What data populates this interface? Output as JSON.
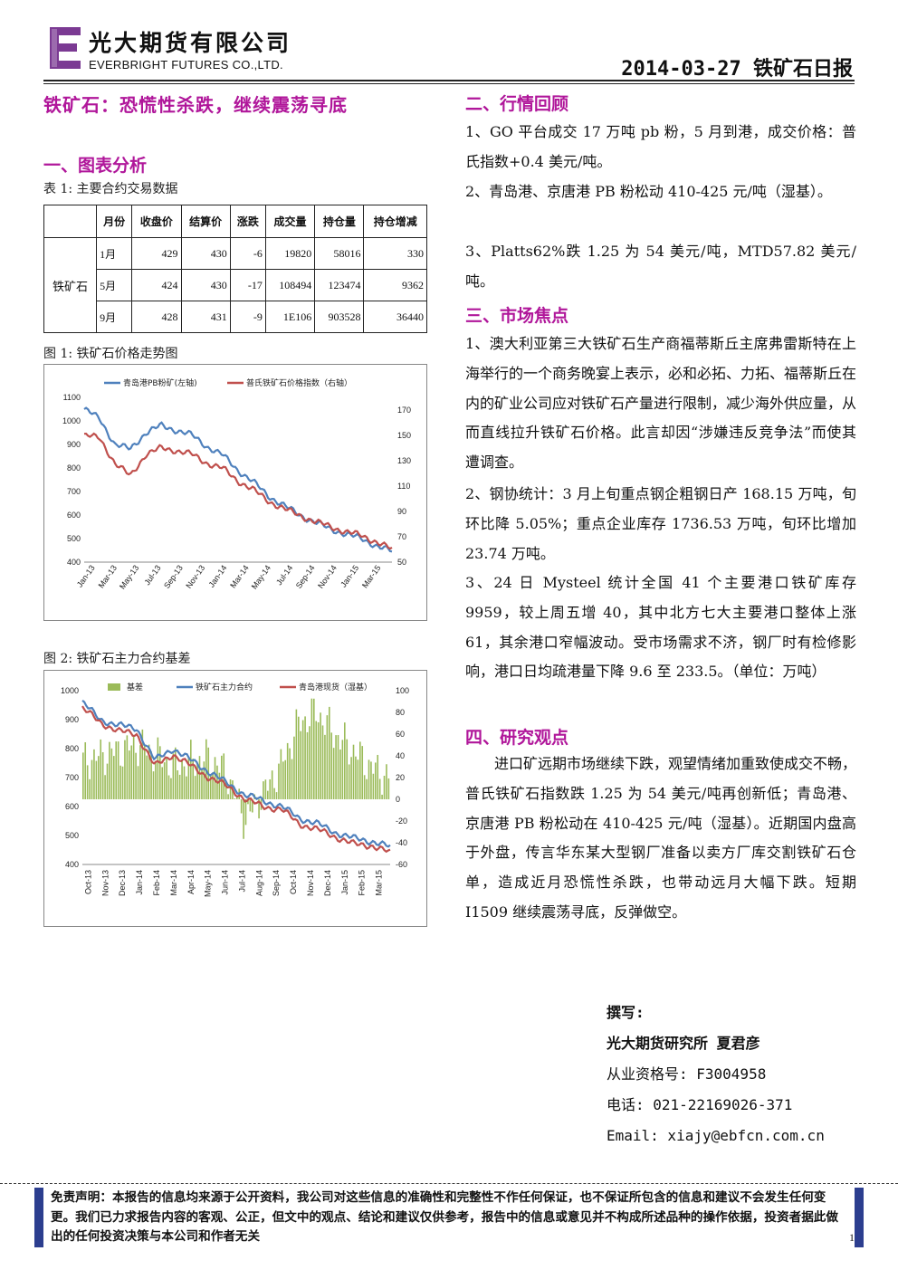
{
  "header": {
    "company_cn": "光大期货有限公司",
    "company_en": "EVERBRIGHT FUTURES CO.,LTD.",
    "report_title": "2014-03-27 铁矿石日报",
    "logo_color": "#7b3a93"
  },
  "headline": "铁矿石：恐慌性杀跌，继续震荡寻底",
  "section1": {
    "title": "一、图表分析",
    "table_caption": "表 1: 主要合约交易数据",
    "table": {
      "headers": [
        "",
        "月份",
        "收盘价",
        "结算价",
        "涨跌",
        "成交量",
        "持仓量",
        "持仓增减"
      ],
      "row_label": "铁矿石",
      "rows": [
        [
          "1月",
          "429",
          "430",
          "-6",
          "19820",
          "58016",
          "330"
        ],
        [
          "5月",
          "424",
          "430",
          "-17",
          "108494",
          "123474",
          "9362"
        ],
        [
          "9月",
          "428",
          "431",
          "-9",
          "1E106",
          "903528",
          "36440"
        ]
      ]
    },
    "fig1_caption": "图 1: 铁矿石价格走势图",
    "fig2_caption": "图 2: 铁矿石主力合约基差"
  },
  "chart_data": [
    {
      "type": "line",
      "title": "",
      "legend_placement": "top",
      "x_labels": [
        "Jan-13",
        "Mar-13",
        "May-13",
        "Jul-13",
        "Sep-13",
        "Nov-13",
        "Jan-14",
        "Mar-14",
        "May-14",
        "Jul-14",
        "Sep-14",
        "Nov-14",
        "Jan-15",
        "Mar-15"
      ],
      "left_axis": {
        "ylim": [
          400,
          1100
        ],
        "ticks": [
          400,
          500,
          600,
          700,
          800,
          900,
          1000,
          1100
        ]
      },
      "right_axis": {
        "ylim": [
          50,
          180
        ],
        "ticks": [
          50,
          70,
          90,
          110,
          130,
          150,
          170
        ]
      },
      "series": [
        {
          "name": "青岛港PB粉矿(左轴)",
          "axis": "left",
          "color": "#4f81bd",
          "values": [
            1050,
            1010,
            900,
            880,
            950,
            980,
            960,
            940,
            890,
            855,
            790,
            740,
            680,
            640,
            600,
            570,
            540,
            520,
            500,
            470,
            445
          ]
        },
        {
          "name": "普氏铁矿石价格指数（右轴）",
          "axis": "right",
          "color": "#c0504d",
          "values": [
            150,
            148,
            128,
            118,
            135,
            140,
            138,
            135,
            128,
            124,
            114,
            107,
            98,
            92,
            87,
            82,
            78,
            74,
            71,
            66,
            60
          ]
        }
      ]
    },
    {
      "type": "bar+line",
      "title": "",
      "legend_placement": "top",
      "x_labels": [
        "Oct-13",
        "Nov-13",
        "Dec-13",
        "Jan-14",
        "Feb-14",
        "Mar-14",
        "Apr-14",
        "May-14",
        "Jun-14",
        "Jul-14",
        "Aug-14",
        "Sep-14",
        "Oct-14",
        "Nov-14",
        "Dec-14",
        "Jan-15",
        "Feb-15",
        "Mar-15"
      ],
      "left_axis": {
        "ylim": [
          400,
          1000
        ],
        "ticks": [
          400,
          500,
          600,
          700,
          800,
          900,
          1000
        ]
      },
      "right_axis": {
        "ylim": [
          -60,
          100
        ],
        "ticks": [
          -60,
          -40,
          -20,
          0,
          20,
          40,
          60,
          80,
          100
        ]
      },
      "series": [
        {
          "name": "基差",
          "axis": "right",
          "kind": "bar",
          "color": "#9bbb59",
          "values": [
            35,
            40,
            45,
            50,
            42,
            30,
            35,
            38,
            25,
            -20,
            5,
            30,
            70,
            80,
            60,
            45,
            30,
            20
          ]
        },
        {
          "name": "铁矿石主力合约",
          "axis": "left",
          "kind": "line",
          "color": "#4f81bd",
          "values": [
            960,
            900,
            880,
            870,
            760,
            800,
            760,
            720,
            680,
            640,
            620,
            600,
            560,
            540,
            510,
            490,
            480,
            460
          ]
        },
        {
          "name": "青岛港现货（湿基）",
          "axis": "left",
          "kind": "line",
          "color": "#c0504d",
          "values": [
            940,
            890,
            860,
            850,
            740,
            780,
            740,
            700,
            670,
            625,
            600,
            590,
            540,
            520,
            495,
            470,
            465,
            440
          ]
        }
      ]
    }
  ],
  "section2": {
    "title": "二、行情回顾",
    "p1": "1、GO 平台成交 17 万吨 pb 粉，5 月到港，成交价格：普氏指数+0.4 美元/吨。",
    "p2": "2、青岛港、京唐港 PB 粉松动 410-425 元/吨（湿基）。",
    "p3": "3、Platts62%跌 1.25 为 54 美元/吨，MTD57.82 美元/吨。"
  },
  "section3": {
    "title": "三、市场焦点",
    "p1": "1、澳大利亚第三大铁矿石生产商福蒂斯丘主席弗雷斯特在上海举行的一个商务晚宴上表示，必和必拓、力拓、福蒂斯丘在内的矿业公司应对铁矿石产量进行限制，减少海外供应量，从而直线拉升铁矿石价格。此言却因“涉嫌违反竞争法”而使其遭调查。",
    "p2": "2、钢协统计：3 月上旬重点钢企粗钢日产 168.15 万吨，旬环比降 5.05%；重点企业库存 1736.53 万吨，旬环比增加 23.74 万吨。",
    "p3": "3、24 日 Mysteel 统计全国 41 个主要港口铁矿库存 9959，较上周五增 40，其中北方七大主要港口整体上涨 61，其余港口窄幅波动。受市场需求不济，钢厂时有检修影响，港口日均疏港量下降 9.6 至 233.5。（单位：万吨）"
  },
  "section4": {
    "title": "四、研究观点",
    "p1": "进口矿远期市场继续下跌，观望情绪加重致使成交不畅，普氏铁矿石指数跌 1.25 为 54 美元/吨再创新低；青岛港、京唐港 PB 粉松动在 410-425 元/吨（湿基）。近期国内盘高于外盘，传言华东某大型钢厂准备以卖方厂库交割铁矿石仓单，造成近月恐慌性杀跌，也带动远月大幅下跌。短期 I1509 继续震荡寻底，反弹做空。"
  },
  "author": {
    "label": "撰写:",
    "name": "光大期货研究所 夏君彦",
    "license": "从业资格号: F3004958",
    "phone": "电话: 021-22169026-371",
    "email": "Email: xiajy@ebfcn.com.cn"
  },
  "disclaimer": "免责声明：本报告的信息均来源于公开资料，我公司对这些信息的准确性和完整性不作任何保证，也不保证所包含的信息和建议不会发生任何变更。我们已力求报告内容的客观、公正，但文中的观点、结论和建议仅供参考，报告中的信息或意见并不构成所述品种的操作依据，投资者据此做出的任何投资决策与本公司和作者无关",
  "page_number": "1"
}
